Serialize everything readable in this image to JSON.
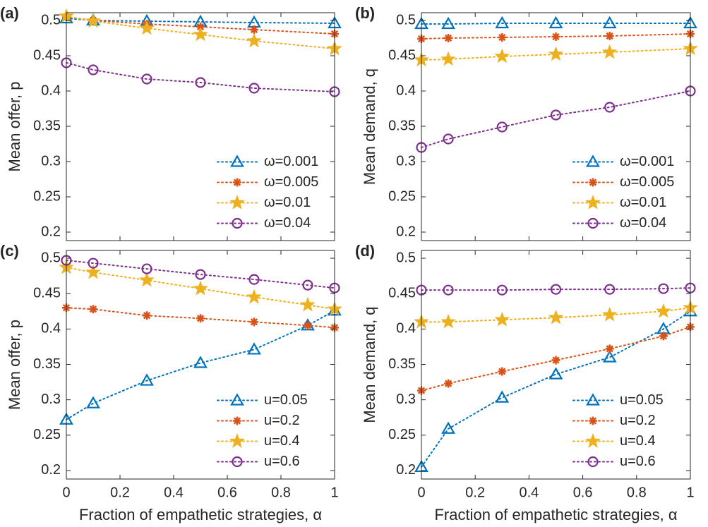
{
  "chart_data": [
    {
      "type": "line",
      "panel_label": "(a)",
      "ylabel": "Mean offer, p",
      "x": [
        0,
        0.1,
        0.3,
        0.5,
        0.7,
        1
      ],
      "xlim": [
        0,
        1
      ],
      "xticks": [
        0,
        0.2,
        0.4,
        0.6,
        0.8,
        1
      ],
      "ylim": [
        0.188,
        0.511
      ],
      "yticks": [
        0.2,
        0.25,
        0.3,
        0.35,
        0.4,
        0.45,
        0.5
      ],
      "legend": "lower right",
      "series": [
        {
          "name": "ω=0.001",
          "color": "#0072BD",
          "marker": "triangle",
          "values": [
            0.503,
            0.5,
            0.499,
            0.498,
            0.497,
            0.496
          ]
        },
        {
          "name": "ω=0.005",
          "color": "#D95319",
          "marker": "asterisk",
          "values": [
            0.505,
            0.5,
            0.495,
            0.491,
            0.487,
            0.481
          ]
        },
        {
          "name": "ω=0.01",
          "color": "#EDB120",
          "marker": "star",
          "values": [
            0.506,
            0.499,
            0.489,
            0.48,
            0.471,
            0.46
          ]
        },
        {
          "name": "ω=0.04",
          "color": "#7E2F8E",
          "marker": "circle",
          "values": [
            0.44,
            0.43,
            0.417,
            0.412,
            0.404,
            0.399
          ]
        }
      ]
    },
    {
      "type": "line",
      "panel_label": "(b)",
      "ylabel": "Mean demand, q",
      "x": [
        0,
        0.1,
        0.3,
        0.5,
        0.7,
        1
      ],
      "xlim": [
        0,
        1
      ],
      "xticks": [
        0,
        0.2,
        0.4,
        0.6,
        0.8,
        1
      ],
      "ylim": [
        0.188,
        0.511
      ],
      "yticks": [
        0.2,
        0.25,
        0.3,
        0.35,
        0.4,
        0.45,
        0.5
      ],
      "legend": "lower right",
      "series": [
        {
          "name": "ω=0.001",
          "color": "#0072BD",
          "marker": "triangle",
          "values": [
            0.495,
            0.495,
            0.496,
            0.496,
            0.496,
            0.496
          ]
        },
        {
          "name": "ω=0.005",
          "color": "#D95319",
          "marker": "asterisk",
          "values": [
            0.474,
            0.475,
            0.476,
            0.477,
            0.478,
            0.481
          ]
        },
        {
          "name": "ω=0.01",
          "color": "#EDB120",
          "marker": "star",
          "values": [
            0.444,
            0.445,
            0.449,
            0.452,
            0.455,
            0.46
          ]
        },
        {
          "name": "ω=0.04",
          "color": "#7E2F8E",
          "marker": "circle",
          "values": [
            0.32,
            0.332,
            0.349,
            0.366,
            0.377,
            0.4
          ]
        }
      ]
    },
    {
      "type": "line",
      "panel_label": "(c)",
      "ylabel": "Mean offer, p",
      "xlabel": "Fraction of empathetic strategies, α",
      "x": [
        0,
        0.1,
        0.3,
        0.5,
        0.7,
        0.9,
        1
      ],
      "xlim": [
        0,
        1
      ],
      "xticks": [
        0,
        0.2,
        0.4,
        0.6,
        0.8,
        1
      ],
      "ylim": [
        0.188,
        0.511
      ],
      "yticks": [
        0.2,
        0.25,
        0.3,
        0.35,
        0.4,
        0.45,
        0.5
      ],
      "legend": "lower right",
      "series": [
        {
          "name": "u=0.05",
          "color": "#0072BD",
          "marker": "triangle",
          "values": [
            0.272,
            0.295,
            0.327,
            0.352,
            0.371,
            0.405,
            0.426
          ]
        },
        {
          "name": "u=0.2",
          "color": "#D95319",
          "marker": "asterisk",
          "values": [
            0.43,
            0.428,
            0.419,
            0.415,
            0.41,
            0.405,
            0.402
          ]
        },
        {
          "name": "u=0.4",
          "color": "#EDB120",
          "marker": "star",
          "values": [
            0.487,
            0.48,
            0.469,
            0.457,
            0.445,
            0.434,
            0.428
          ]
        },
        {
          "name": "u=0.6",
          "color": "#7E2F8E",
          "marker": "circle",
          "values": [
            0.497,
            0.493,
            0.485,
            0.477,
            0.47,
            0.462,
            0.458
          ]
        }
      ]
    },
    {
      "type": "line",
      "panel_label": "(d)",
      "ylabel": "Mean demand, q",
      "xlabel": "Fraction of empathetic strategies, α",
      "x": [
        0,
        0.1,
        0.3,
        0.5,
        0.7,
        0.9,
        1
      ],
      "xlim": [
        0,
        1
      ],
      "xticks": [
        0,
        0.2,
        0.4,
        0.6,
        0.8,
        1
      ],
      "ylim": [
        0.188,
        0.511
      ],
      "yticks": [
        0.2,
        0.25,
        0.3,
        0.35,
        0.4,
        0.45,
        0.5
      ],
      "legend": "lower right",
      "series": [
        {
          "name": "u=0.05",
          "color": "#0072BD",
          "marker": "triangle",
          "values": [
            0.205,
            0.259,
            0.303,
            0.336,
            0.36,
            0.4,
            0.425
          ]
        },
        {
          "name": "u=0.2",
          "color": "#D95319",
          "marker": "asterisk",
          "values": [
            0.313,
            0.323,
            0.34,
            0.356,
            0.372,
            0.39,
            0.403
          ]
        },
        {
          "name": "u=0.4",
          "color": "#EDB120",
          "marker": "star",
          "values": [
            0.41,
            0.41,
            0.413,
            0.416,
            0.42,
            0.425,
            0.43
          ]
        },
        {
          "name": "u=0.6",
          "color": "#7E2F8E",
          "marker": "circle",
          "values": [
            0.455,
            0.455,
            0.455,
            0.456,
            0.456,
            0.457,
            0.458
          ]
        }
      ]
    }
  ]
}
